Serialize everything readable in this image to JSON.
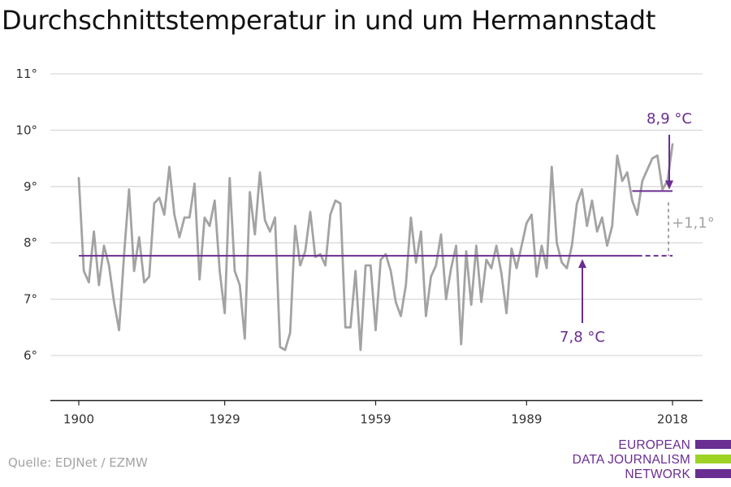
{
  "title": "Durchschnittstemperatur in und um Hermannstadt",
  "source": "Quelle: EDJNet / EZMW",
  "logo": {
    "lines": [
      "EUROPEAN",
      "DATA JOURNALISM",
      "NETWORK"
    ],
    "colors": {
      "purple": "#6a2d91",
      "green": "#9ed326"
    }
  },
  "colors": {
    "series": "#a3a3a3",
    "accent": "#6a2d91",
    "grid": "#d9d9d9",
    "axis": "#222222",
    "text": "#333333"
  },
  "chart_data": {
    "type": "line",
    "title": "Durchschnittstemperatur in und um Hermannstadt",
    "xlabel": "",
    "ylabel": "",
    "xlim": [
      1900,
      2018
    ],
    "ylim": [
      5.2,
      11.0
    ],
    "grid": true,
    "x_ticks": [
      1900,
      1929,
      1959,
      1989,
      2018
    ],
    "x_tick_labels": [
      "1900",
      "1929",
      "1959",
      "1989",
      "2018"
    ],
    "y_ticks": [
      6,
      7,
      8,
      9,
      10,
      11
    ],
    "y_tick_labels": [
      "6°",
      "7°",
      "8°",
      "9°",
      "10°",
      "11°"
    ],
    "series": [
      {
        "x": [
          1900,
          1901,
          1902,
          1903,
          1904,
          1905,
          1906,
          1907,
          1908,
          1909,
          1910,
          1911,
          1912,
          1913,
          1914,
          1915,
          1916,
          1917,
          1918,
          1919,
          1920,
          1921,
          1922,
          1923,
          1924,
          1925,
          1926,
          1927,
          1928,
          1929,
          1930,
          1931,
          1932,
          1933,
          1934,
          1935,
          1936,
          1937,
          1938,
          1939,
          1940,
          1941,
          1942,
          1943,
          1944,
          1945,
          1946,
          1947,
          1948,
          1949,
          1950,
          1951,
          1952,
          1953,
          1954,
          1955,
          1956,
          1957,
          1958,
          1959,
          1960,
          1961,
          1962,
          1963,
          1964,
          1965,
          1966,
          1967,
          1968,
          1969,
          1970,
          1971,
          1972,
          1973,
          1974,
          1975,
          1976,
          1977,
          1978,
          1979,
          1980,
          1981,
          1982,
          1983,
          1984,
          1985,
          1986,
          1987,
          1988,
          1989,
          1990,
          1991,
          1992,
          1993,
          1994,
          1995,
          1996,
          1997,
          1998,
          1999,
          2000,
          2001,
          2002,
          2003,
          2004,
          2005,
          2006,
          2007,
          2008,
          2009,
          2010,
          2011,
          2012,
          2013,
          2014,
          2015,
          2016,
          2017,
          2018
        ],
        "values": [
          9.15,
          7.5,
          7.3,
          8.2,
          7.25,
          7.95,
          7.6,
          6.95,
          6.45,
          7.8,
          8.95,
          7.5,
          8.1,
          7.3,
          7.4,
          8.7,
          8.8,
          8.5,
          9.35,
          8.5,
          8.1,
          8.45,
          8.45,
          9.05,
          7.35,
          8.45,
          8.3,
          8.75,
          7.5,
          6.75,
          9.15,
          7.5,
          7.25,
          6.3,
          8.9,
          8.15,
          9.25,
          8.4,
          8.2,
          8.45,
          6.15,
          6.1,
          6.4,
          8.3,
          7.6,
          7.85,
          8.55,
          7.75,
          7.8,
          7.6,
          8.5,
          8.75,
          8.7,
          6.5,
          6.5,
          7.5,
          6.1,
          7.6,
          7.6,
          6.45,
          7.7,
          7.8,
          7.5,
          6.95,
          6.7,
          7.25,
          8.45,
          7.65,
          8.2,
          6.7,
          7.4,
          7.6,
          8.15,
          7.0,
          7.55,
          7.95,
          6.2,
          7.85,
          6.9,
          7.95,
          6.95,
          7.7,
          7.55,
          7.95,
          7.45,
          6.75,
          7.9,
          7.55,
          7.95,
          8.35,
          8.5,
          7.4,
          7.95,
          7.55,
          9.35,
          8.0,
          7.65,
          7.55,
          7.95,
          8.7,
          8.95,
          8.3,
          8.75,
          8.2,
          8.45,
          7.95,
          8.3,
          9.55,
          9.1,
          9.25,
          8.75,
          8.5,
          9.1,
          9.3,
          9.5,
          9.55,
          8.95,
          9.1,
          9.75
        ]
      }
    ],
    "reference_lines": [
      {
        "from": 1900,
        "to": 2011,
        "value": 7.77,
        "style": "solid"
      },
      {
        "from": 2011,
        "to": 2018,
        "value": 7.77,
        "style": "dashed"
      },
      {
        "from": 2010,
        "to": 2018,
        "value": 8.92,
        "style": "solid"
      }
    ],
    "annotations": [
      {
        "text": "8,9 °C"
      },
      {
        "text": "7,8 °C"
      },
      {
        "text": "+1,1°"
      }
    ]
  }
}
